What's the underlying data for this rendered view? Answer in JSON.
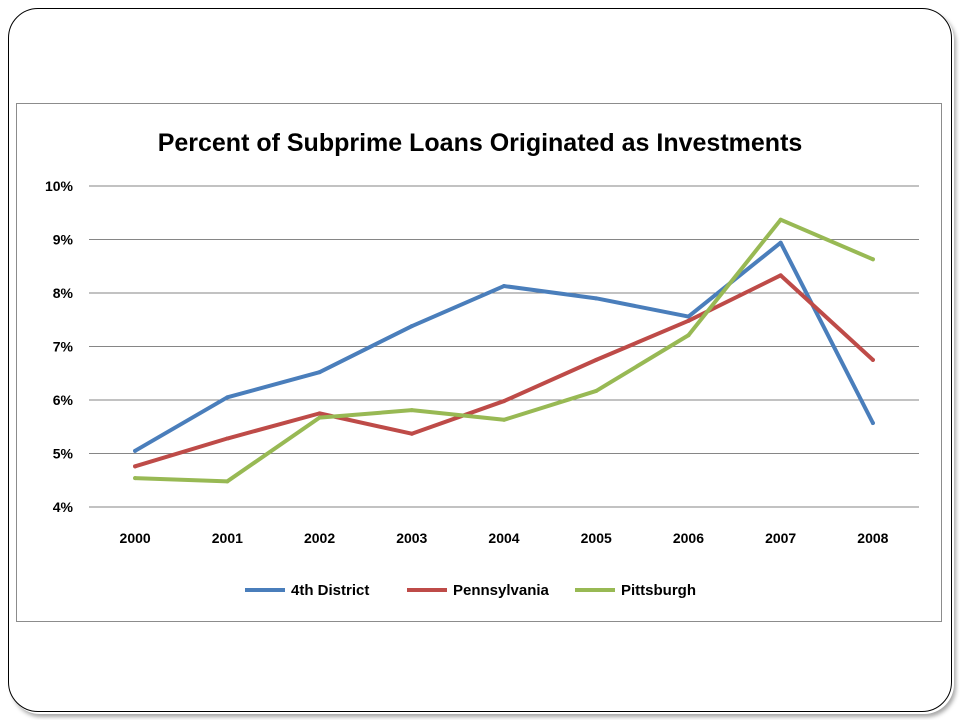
{
  "chart_data": {
    "type": "line",
    "title": "Percent of Subprime Loans Originated as Investments",
    "xlabel": "",
    "ylabel": "",
    "categories": [
      "2000",
      "2001",
      "2002",
      "2003",
      "2004",
      "2005",
      "2006",
      "2007",
      "2008"
    ],
    "ylim": [
      4,
      10
    ],
    "yticks": [
      4,
      5,
      6,
      7,
      8,
      9,
      10
    ],
    "ytick_labels": [
      "4%",
      "5%",
      "6%",
      "7%",
      "8%",
      "9%",
      "10%"
    ],
    "grid": true,
    "legend_position": "bottom",
    "series": [
      {
        "name": "4th District",
        "color": "#4a7ebb",
        "values": [
          5.05,
          6.05,
          6.52,
          7.38,
          8.13,
          7.9,
          7.56,
          8.94,
          5.57
        ]
      },
      {
        "name": "Pennsylvania",
        "color": "#be4b48",
        "values": [
          4.76,
          5.28,
          5.75,
          5.37,
          5.98,
          6.75,
          7.48,
          8.33,
          6.75
        ]
      },
      {
        "name": "Pittsburgh",
        "color": "#98b954",
        "values": [
          4.54,
          4.48,
          5.67,
          5.81,
          5.63,
          6.17,
          7.21,
          9.37,
          8.63
        ]
      }
    ]
  }
}
